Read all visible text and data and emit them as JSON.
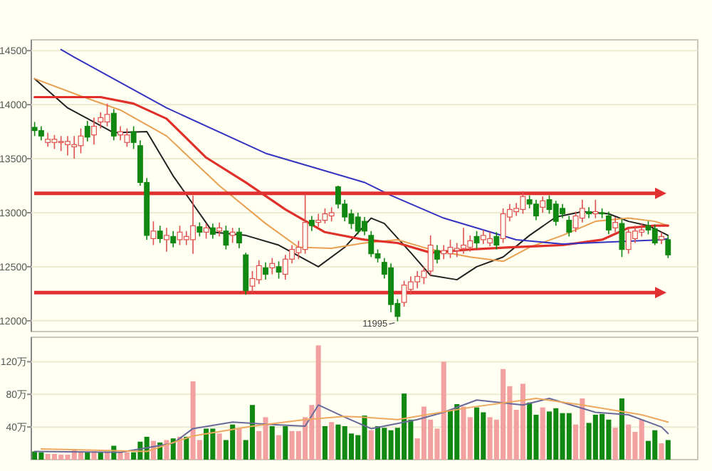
{
  "chart_data": [
    {
      "type": "candlestick",
      "categories": [
        null,
        null,
        null,
        null,
        null,
        null,
        null,
        null,
        null,
        null,
        null,
        null,
        null,
        null,
        null,
        null,
        null,
        null,
        null,
        null,
        null,
        null,
        null,
        null,
        null,
        null,
        null,
        null,
        null,
        null,
        null,
        null,
        null,
        null,
        null,
        null,
        null,
        null,
        null,
        null,
        null,
        null,
        null,
        null,
        null,
        null,
        null,
        null,
        null,
        null,
        null,
        null,
        null,
        null,
        null,
        null,
        null,
        null,
        null,
        null,
        null,
        null,
        null,
        null,
        null,
        null,
        null,
        null,
        null,
        null,
        null,
        null,
        null,
        null,
        null,
        null,
        null,
        null,
        null,
        null,
        null,
        null,
        null,
        null,
        null,
        null,
        null,
        null,
        null,
        null,
        null,
        null,
        null,
        null,
        null,
        null,
        null
      ],
      "ohlc": [
        [
          13790,
          13840,
          13710,
          13760
        ],
        [
          13760,
          13800,
          13670,
          13710
        ],
        [
          13650,
          13740,
          13610,
          13680
        ],
        [
          13650,
          13720,
          13590,
          13680
        ],
        [
          13650,
          13710,
          13570,
          13660
        ],
        [
          13630,
          13710,
          13530,
          13660
        ],
        [
          13610,
          13710,
          13500,
          13630
        ],
        [
          13620,
          13780,
          13550,
          13710
        ],
        [
          13800,
          13850,
          13660,
          13700
        ],
        [
          13720,
          13880,
          13630,
          13800
        ],
        [
          13840,
          13930,
          13780,
          13880
        ],
        [
          13840,
          14010,
          13800,
          13910
        ],
        [
          13920,
          13960,
          13670,
          13710
        ],
        [
          13720,
          13800,
          13670,
          13750
        ],
        [
          13650,
          13780,
          13610,
          13720
        ],
        [
          13750,
          13800,
          13590,
          13650
        ],
        [
          13620,
          13670,
          13250,
          13280
        ],
        [
          13280,
          13320,
          12750,
          12790
        ],
        [
          12760,
          12920,
          12700,
          12830
        ],
        [
          12830,
          12880,
          12720,
          12760
        ],
        [
          12750,
          12860,
          12640,
          12790
        ],
        [
          12780,
          12830,
          12680,
          12720
        ],
        [
          12750,
          12880,
          12700,
          12820
        ],
        [
          12750,
          12830,
          12700,
          12780
        ],
        [
          12750,
          13160,
          12620,
          12880
        ],
        [
          12870,
          12910,
          12780,
          12820
        ],
        [
          12820,
          12900,
          12760,
          12860
        ],
        [
          12860,
          12900,
          12760,
          12800
        ],
        [
          12830,
          12910,
          12780,
          12860
        ],
        [
          12830,
          12880,
          12660,
          12700
        ],
        [
          12790,
          12860,
          12720,
          12820
        ],
        [
          12820,
          12860,
          12670,
          12720
        ],
        [
          12610,
          12630,
          12240,
          12280
        ],
        [
          12320,
          12460,
          12260,
          12390
        ],
        [
          12380,
          12560,
          12340,
          12510
        ],
        [
          12490,
          12540,
          12380,
          12430
        ],
        [
          12490,
          12580,
          12430,
          12530
        ],
        [
          12500,
          12550,
          12390,
          12450
        ],
        [
          12430,
          12610,
          12380,
          12570
        ],
        [
          12570,
          12700,
          12530,
          12660
        ],
        [
          12630,
          12740,
          12570,
          12680
        ],
        [
          12660,
          13170,
          12620,
          12910
        ],
        [
          12930,
          12970,
          12830,
          12880
        ],
        [
          12910,
          12990,
          12870,
          12930
        ],
        [
          12930,
          13040,
          12900,
          12990
        ],
        [
          12970,
          13050,
          12920,
          13000
        ],
        [
          13240,
          13250,
          13040,
          13080
        ],
        [
          13080,
          13120,
          12920,
          12960
        ],
        [
          12990,
          13030,
          12850,
          12900
        ],
        [
          12960,
          13000,
          12800,
          12830
        ],
        [
          12920,
          12960,
          12790,
          12830
        ],
        [
          12790,
          12830,
          12590,
          12620
        ],
        [
          12620,
          12660,
          12540,
          12580
        ],
        [
          12540,
          12580,
          12390,
          12430
        ],
        [
          12490,
          12530,
          12080,
          12150
        ],
        [
          12160,
          12200,
          11995,
          12040
        ],
        [
          12170,
          12370,
          12130,
          12330
        ],
        [
          12290,
          12410,
          12240,
          12360
        ],
        [
          12360,
          12460,
          12300,
          12410
        ],
        [
          12400,
          12500,
          12340,
          12460
        ],
        [
          12460,
          12790,
          12420,
          12700
        ],
        [
          12650,
          12700,
          12530,
          12570
        ],
        [
          12620,
          12700,
          12570,
          12650
        ],
        [
          12620,
          12750,
          12580,
          12680
        ],
        [
          12650,
          12720,
          12590,
          12670
        ],
        [
          12670,
          12860,
          12620,
          12700
        ],
        [
          12680,
          12790,
          12640,
          12740
        ],
        [
          12780,
          12830,
          12670,
          12720
        ],
        [
          12750,
          12840,
          12710,
          12790
        ],
        [
          12720,
          12820,
          12690,
          12760
        ],
        [
          12780,
          12820,
          12660,
          12700
        ],
        [
          12760,
          13040,
          12720,
          12990
        ],
        [
          12960,
          13080,
          12920,
          13030
        ],
        [
          13010,
          13090,
          12970,
          13040
        ],
        [
          13030,
          13200,
          12990,
          13150
        ],
        [
          13120,
          13160,
          13040,
          13080
        ],
        [
          13080,
          13120,
          12930,
          12970
        ],
        [
          13050,
          13150,
          13000,
          13110
        ],
        [
          13120,
          13160,
          12990,
          13030
        ],
        [
          13080,
          13110,
          12880,
          12920
        ],
        [
          13040,
          13080,
          12950,
          12990
        ],
        [
          12930,
          12970,
          12780,
          12820
        ],
        [
          12860,
          13010,
          12820,
          12970
        ],
        [
          12950,
          13120,
          12910,
          13040
        ],
        [
          13010,
          13050,
          12950,
          12990
        ],
        [
          12990,
          13120,
          12950,
          13010
        ],
        [
          13000,
          13040,
          12950,
          12990
        ],
        [
          12970,
          13010,
          12800,
          12840
        ],
        [
          12860,
          12960,
          12820,
          12910
        ],
        [
          12900,
          12940,
          12590,
          12660
        ],
        [
          12660,
          12860,
          12620,
          12820
        ],
        [
          12760,
          12880,
          12720,
          12830
        ],
        [
          12820,
          12900,
          12780,
          12840
        ],
        [
          12880,
          12920,
          12800,
          12840
        ],
        [
          12850,
          12890,
          12700,
          12720
        ],
        [
          12750,
          12820,
          12710,
          12780
        ],
        [
          12750,
          12790,
          12580,
          12610
        ]
      ],
      "series": [
        {
          "type": "line",
          "color": "#222222",
          "values": [
            14240,
            null,
            null,
            null,
            null,
            13970,
            null,
            null,
            null,
            null,
            null,
            null,
            13740,
            null,
            null,
            null,
            null,
            13750,
            null,
            null,
            null,
            13340,
            null,
            null,
            null,
            null,
            null,
            12820,
            null,
            null,
            null,
            null,
            12790,
            null,
            null,
            null,
            null,
            12700,
            null,
            null,
            null,
            null,
            null,
            12500,
            null,
            null,
            null,
            12680,
            null,
            null,
            null,
            12950,
            null,
            12900,
            null,
            null,
            null,
            12630,
            null,
            null,
            12420,
            null,
            null,
            null,
            12380,
            null,
            null,
            12500,
            null,
            null,
            null,
            12590,
            null,
            null,
            null,
            12790,
            null,
            null,
            null,
            12960,
            null,
            null,
            null,
            13010,
            null,
            null,
            null,
            12990,
            null,
            null,
            12920,
            null,
            null,
            12880,
            null,
            null,
            12790
          ]
        },
        {
          "type": "line",
          "color": "#e8a050",
          "values": [
            14240,
            null,
            null,
            null,
            null,
            null,
            null,
            14080,
            null,
            null,
            null,
            null,
            null,
            13950,
            null,
            null,
            null,
            null,
            null,
            null,
            13710,
            null,
            null,
            null,
            null,
            null,
            null,
            null,
            13250,
            null,
            null,
            null,
            null,
            null,
            null,
            12900,
            null,
            null,
            null,
            null,
            12680,
            null,
            null,
            null,
            null,
            12670,
            null,
            null,
            null,
            null,
            12720,
            null,
            null,
            null,
            null,
            12750,
            null,
            null,
            null,
            null,
            12660,
            null,
            null,
            null,
            null,
            null,
            12590,
            null,
            null,
            null,
            null,
            12550,
            null,
            null,
            null,
            12680,
            null,
            null,
            null,
            null,
            12790,
            null,
            null,
            null,
            null,
            12920,
            null,
            null,
            null,
            null,
            12950,
            null,
            null,
            null,
            12920,
            null,
            12880
          ]
        },
        {
          "type": "line",
          "color": "#e0302a",
          "values": [
            14070,
            null,
            null,
            null,
            null,
            null,
            null,
            null,
            null,
            null,
            14070,
            null,
            null,
            null,
            null,
            14010,
            null,
            null,
            null,
            null,
            13870,
            null,
            null,
            null,
            null,
            null,
            13510,
            null,
            null,
            null,
            null,
            null,
            13280,
            null,
            null,
            null,
            null,
            null,
            13030,
            null,
            null,
            null,
            null,
            null,
            12820,
            null,
            null,
            null,
            null,
            null,
            12750,
            null,
            null,
            null,
            null,
            12720,
            null,
            null,
            null,
            null,
            12630,
            null,
            null,
            null,
            null,
            null,
            12660,
            null,
            null,
            null,
            null,
            null,
            12680,
            null,
            null,
            null,
            null,
            null,
            null,
            null,
            12700,
            null,
            null,
            null,
            null,
            null,
            12750,
            null,
            null,
            null,
            12860,
            null,
            null,
            null,
            12880,
            null,
            12880
          ]
        },
        {
          "type": "line",
          "color": "#3333c0",
          "values": [
            null,
            null,
            null,
            null,
            14510,
            null,
            14440,
            null,
            null,
            null,
            null,
            null,
            null,
            null,
            null,
            null,
            null,
            null,
            null,
            null,
            13970,
            null,
            null,
            null,
            null,
            null,
            null,
            null,
            null,
            null,
            null,
            null,
            null,
            null,
            null,
            13550,
            null,
            null,
            null,
            null,
            null,
            null,
            null,
            null,
            null,
            null,
            null,
            null,
            null,
            null,
            13280,
            null,
            null,
            null,
            13160,
            null,
            null,
            null,
            null,
            null,
            null,
            null,
            12950,
            null,
            null,
            null,
            null,
            null,
            null,
            null,
            null,
            null,
            null,
            12750,
            null,
            null,
            null,
            null,
            null,
            null,
            12710,
            null,
            null,
            null,
            null,
            null,
            null,
            null,
            null,
            null,
            null,
            null,
            null,
            null,
            null,
            12750,
            12760
          ]
        }
      ],
      "ylim": [
        11900,
        14600
      ],
      "yticks": [
        12000,
        12500,
        13000,
        13500,
        14000,
        14500
      ],
      "grid": "y",
      "ref_lines": [
        {
          "axis": "y",
          "value": 13180,
          "color": "#e03030"
        },
        {
          "axis": "y",
          "value": 12260,
          "color": "#e03030"
        }
      ],
      "annotations": [
        "11995"
      ]
    },
    {
      "type": "bar",
      "categories": [
        null,
        null,
        null,
        null,
        null,
        null,
        null,
        null,
        null,
        null,
        null,
        null,
        null,
        null,
        null,
        null,
        null,
        null,
        null,
        null,
        null,
        null,
        null,
        null,
        null,
        null,
        null,
        null,
        null,
        null,
        null,
        null,
        null,
        null,
        null,
        null,
        null,
        null,
        null,
        null,
        null,
        null,
        null,
        null,
        null,
        null,
        null,
        null,
        null,
        null,
        null,
        null,
        null,
        null,
        null,
        null,
        null,
        null,
        null,
        null,
        null,
        null,
        null,
        null,
        null,
        null,
        null,
        null,
        null,
        null,
        null,
        null,
        null,
        null,
        null,
        null,
        null,
        null,
        null,
        null,
        null,
        null,
        null,
        null,
        null,
        null,
        null,
        null,
        null,
        null,
        null,
        null,
        null,
        null,
        null,
        null,
        null
      ],
      "series": [
        {
          "type": "bar",
          "values": [
            10,
            9,
            7,
            7,
            6,
            6,
            13,
            9,
            9,
            10,
            9,
            10,
            17,
            9,
            9,
            9,
            22,
            28,
            23,
            21,
            24,
            26,
            28,
            28,
            96,
            24,
            38,
            38,
            32,
            24,
            43,
            38,
            24,
            67,
            35,
            52,
            41,
            30,
            41,
            35,
            35,
            52,
            67,
            140,
            41,
            46,
            43,
            41,
            32,
            30,
            54,
            36,
            41,
            39,
            36,
            39,
            81,
            49,
            26,
            65,
            49,
            38,
            120,
            61,
            68,
            65,
            52,
            64,
            58,
            52,
            49,
            111,
            90,
            61,
            93,
            70,
            55,
            64,
            59,
            63,
            57,
            57,
            43,
            75,
            45,
            55,
            56,
            49,
            39,
            75,
            43,
            34,
            49,
            23,
            36,
            20,
            24
          ],
          "colors": [
            "#118811",
            "#118811",
            "#f2a0a0",
            "#f2a0a0",
            "#f2a0a0",
            "#f2a0a0",
            "#f2a0a0",
            "#f2a0a0",
            "#118811",
            "#f2a0a0",
            "#118811",
            "#f2a0a0",
            "#118811",
            "#f2a0a0",
            "#f2a0a0",
            "#118811",
            "#118811",
            "#118811",
            "#f2a0a0",
            "#118811",
            "#f2a0a0",
            "#118811",
            "#f2a0a0",
            "#118811",
            "#f2a0a0",
            "#f2a0a0",
            "#118811",
            "#118811",
            "#f2a0a0",
            "#118811",
            "#118811",
            "#f2a0a0",
            "#118811",
            "#118811",
            "#f2a0a0",
            "#f2a0a0",
            "#118811",
            "#f2a0a0",
            "#118811",
            "#f2a0a0",
            "#f2a0a0",
            "#f2a0a0",
            "#f2a0a0",
            "#f2a0a0",
            "#118811",
            "#f2a0a0",
            "#118811",
            "#118811",
            "#118811",
            "#118811",
            "#118811",
            "#f2a0a0",
            "#118811",
            "#118811",
            "#118811",
            "#118811",
            "#118811",
            "#118811",
            "#f2a0a0",
            "#f2a0a0",
            "#f2a0a0",
            "#f2a0a0",
            "#f2a0a0",
            "#118811",
            "#118811",
            "#f2a0a0",
            "#f2a0a0",
            "#118811",
            "#118811",
            "#f2a0a0",
            "#f2a0a0",
            "#f2a0a0",
            "#f2a0a0",
            "#f2a0a0",
            "#f2a0a0",
            "#118811",
            "#118811",
            "#f2a0a0",
            "#118811",
            "#118811",
            "#118811",
            "#118811",
            "#f2a0a0",
            "#f2a0a0",
            "#118811",
            "#118811",
            "#118811",
            "#118811",
            "#f2a0a0",
            "#118811",
            "#f2a0a0",
            "#f2a0a0",
            "#f2a0a0",
            "#118811",
            "#118811",
            "#f2a0a0",
            "#118811"
          ]
        },
        {
          "type": "line",
          "color": "#6a6a9a",
          "values": [
            10,
            null,
            null,
            null,
            null,
            null,
            null,
            null,
            null,
            null,
            null,
            null,
            null,
            9,
            null,
            null,
            null,
            null,
            null,
            null,
            null,
            20,
            null,
            null,
            38,
            null,
            null,
            null,
            null,
            null,
            46,
            null,
            null,
            null,
            null,
            null,
            43,
            null,
            null,
            null,
            null,
            41,
            null,
            67,
            null,
            null,
            null,
            52,
            null,
            null,
            null,
            38,
            null,
            null,
            null,
            null,
            null,
            null,
            49,
            null,
            null,
            null,
            58,
            null,
            null,
            null,
            null,
            73,
            null,
            null,
            null,
            null,
            null,
            null,
            67,
            null,
            null,
            null,
            75,
            null,
            null,
            null,
            null,
            null,
            null,
            58,
            null,
            null,
            null,
            null,
            55,
            null,
            null,
            null,
            null,
            40,
            32
          ]
        },
        {
          "type": "line",
          "color": "#eea860",
          "values": [
            null,
            13,
            null,
            null,
            null,
            null,
            null,
            null,
            null,
            null,
            null,
            null,
            null,
            null,
            null,
            null,
            null,
            10,
            null,
            null,
            null,
            null,
            null,
            null,
            29,
            null,
            null,
            null,
            null,
            null,
            null,
            null,
            null,
            41,
            null,
            null,
            null,
            null,
            null,
            null,
            null,
            49,
            null,
            null,
            null,
            null,
            null,
            53,
            null,
            null,
            52,
            null,
            null,
            null,
            null,
            49,
            null,
            null,
            null,
            null,
            null,
            null,
            null,
            null,
            null,
            null,
            64,
            null,
            null,
            null,
            null,
            null,
            null,
            null,
            null,
            null,
            75,
            null,
            null,
            null,
            null,
            null,
            null,
            67,
            null,
            null,
            null,
            null,
            null,
            null,
            null,
            null,
            55,
            null,
            null,
            null,
            46
          ]
        }
      ],
      "ylim": [
        0,
        150
      ],
      "yticks": [
        {
          "value": 40,
          "label": "40万"
        },
        {
          "value": 80,
          "label": "80万"
        },
        {
          "value": 120,
          "label": "120万"
        }
      ],
      "grid": "y"
    }
  ]
}
